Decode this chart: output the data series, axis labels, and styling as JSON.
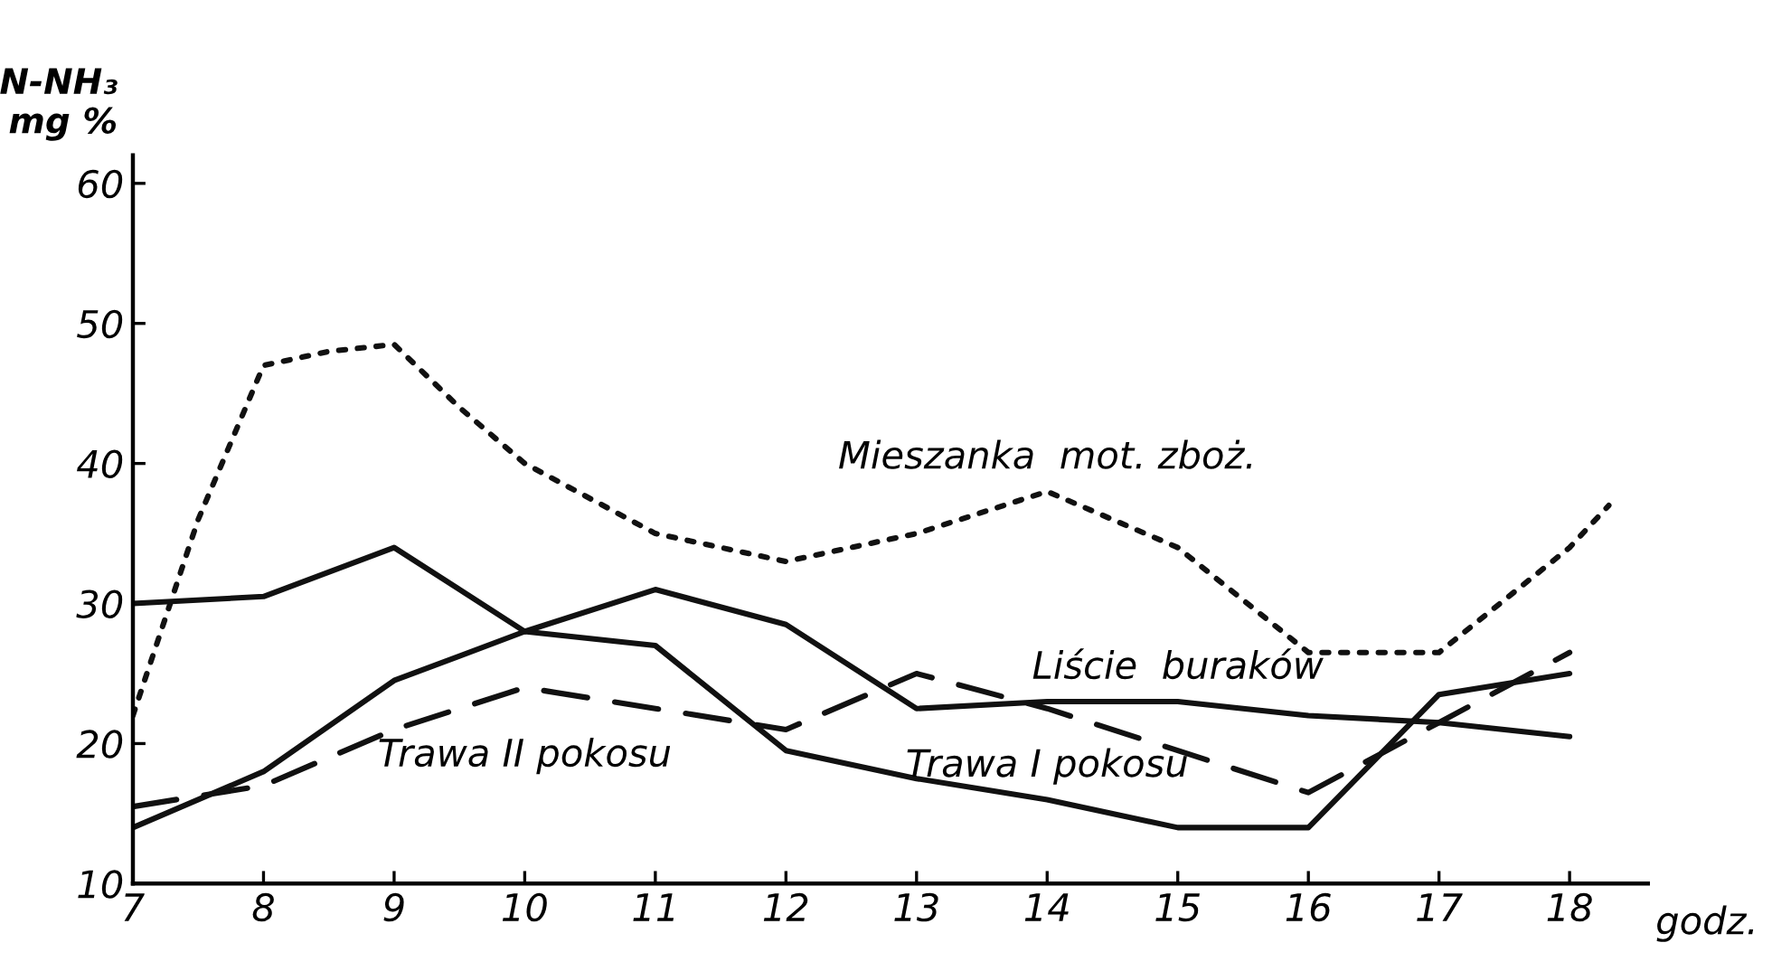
{
  "chart_data": {
    "type": "line",
    "ylabel": "N-NH₃\nmg %",
    "xlabel": "godz.",
    "xlim": [
      7,
      18.6
    ],
    "xticks": [
      7,
      8,
      9,
      10,
      11,
      12,
      13,
      14,
      15,
      16,
      17,
      18
    ],
    "ylim": [
      10,
      62
    ],
    "yticks": [
      10,
      20,
      30,
      40,
      50,
      60
    ],
    "grid": false,
    "marker": "none",
    "series": [
      {
        "color": "#111111",
        "line_style": "dotted",
        "x": [
          7,
          7.5,
          8,
          8.5,
          9,
          9.5,
          10,
          11,
          12,
          13,
          14,
          15,
          16,
          17,
          18,
          18.3
        ],
        "values": [
          22,
          36,
          47,
          48,
          48.5,
          44,
          40,
          35,
          33,
          35,
          38,
          34,
          26.5,
          26.5,
          34,
          37
        ]
      },
      {
        "color": "#111111",
        "line_style": "solid",
        "x": [
          7,
          8,
          9,
          10,
          11,
          12,
          13,
          14,
          15,
          16,
          17,
          18
        ],
        "values": [
          30,
          30.5,
          34,
          28,
          31,
          28.5,
          22.5,
          23,
          23,
          22,
          21.5,
          20.5
        ]
      },
      {
        "color": "#111111",
        "line_style": "solid",
        "x": [
          7,
          8,
          9,
          10,
          11,
          12,
          13,
          14,
          15,
          16,
          17,
          18
        ],
        "values": [
          14,
          18,
          24.5,
          28,
          27,
          19.5,
          17.5,
          16,
          14,
          14,
          23.5,
          25
        ]
      },
      {
        "color": "#111111",
        "line_style": "dashed",
        "x": [
          7,
          8,
          9,
          10,
          11,
          12,
          13,
          14,
          15,
          16,
          17,
          18
        ],
        "values": [
          15.5,
          17,
          21,
          24,
          22.5,
          21,
          25,
          22.5,
          19.5,
          16.5,
          21.5,
          26.5
        ]
      }
    ],
    "annotations": [
      {
        "text": "Mieszanka  mot. zboż.",
        "x": 14,
        "y": 38
      },
      {
        "text": "Liście  buraków",
        "x": 15,
        "y": 23
      },
      {
        "text": "Trawa I pokosu",
        "x": 14,
        "y": 16
      },
      {
        "text": "Trawa II pokosu",
        "x": 10,
        "y": 24
      }
    ]
  }
}
